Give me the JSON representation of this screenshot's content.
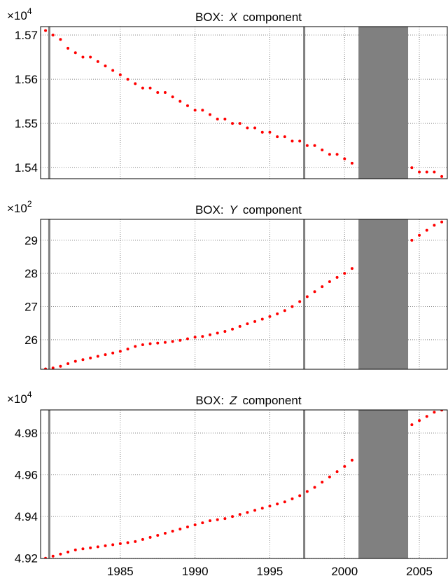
{
  "chart_data": [
    {
      "type": "scatter",
      "title": {
        "prefix": "BOX:",
        "axis": "X",
        "suffix": "component"
      },
      "multiplier": "×10",
      "exponent": "4",
      "color": "#ff0000",
      "grid": true,
      "xtick_labels": false,
      "xlim": [
        1979.67,
        2006.87
      ],
      "xticks": [
        1985,
        1990,
        1995,
        2000,
        2005
      ],
      "ylim": [
        1.5375,
        1.5719
      ],
      "yticks": [
        1.54,
        1.55,
        1.56,
        1.57
      ],
      "vlines": [
        1980.25,
        1997.3
      ],
      "gap": [
        2000.93,
        2004.25
      ],
      "x": [
        1980,
        1980.5,
        1981,
        1981.5,
        1982,
        1982.5,
        1983,
        1983.5,
        1984,
        1984.5,
        1985,
        1985.5,
        1986,
        1986.5,
        1987,
        1987.5,
        1988,
        1988.5,
        1989,
        1989.5,
        1990,
        1990.5,
        1991,
        1991.5,
        1992,
        1992.5,
        1993,
        1993.5,
        1994,
        1994.5,
        1995,
        1995.5,
        1996,
        1996.5,
        1997,
        1997.5,
        1998,
        1998.5,
        1999,
        1999.5,
        2000,
        2000.5,
        2004.5,
        2005,
        2005.5,
        2006,
        2006.5
      ],
      "values": [
        1.571,
        1.57,
        1.569,
        1.567,
        1.566,
        1.565,
        1.565,
        1.564,
        1.563,
        1.562,
        1.561,
        1.56,
        1.559,
        1.558,
        1.558,
        1.557,
        1.557,
        1.556,
        1.555,
        1.554,
        1.553,
        1.553,
        1.552,
        1.551,
        1.551,
        1.55,
        1.55,
        1.549,
        1.549,
        1.548,
        1.548,
        1.547,
        1.547,
        1.546,
        1.546,
        1.545,
        1.545,
        1.544,
        1.543,
        1.543,
        1.542,
        1.541,
        1.54,
        1.539,
        1.539,
        1.539,
        1.538
      ]
    },
    {
      "type": "scatter",
      "title": {
        "prefix": "BOX:",
        "axis": "Y",
        "suffix": "component"
      },
      "multiplier": "×10",
      "exponent": "2",
      "color": "#ff0000",
      "grid": true,
      "xtick_labels": false,
      "xlim": [
        1979.67,
        2006.87
      ],
      "xticks": [
        1985,
        1990,
        1995,
        2000,
        2005
      ],
      "ylim": [
        25.11,
        29.63
      ],
      "yticks": [
        26,
        27,
        28,
        29
      ],
      "vlines": [
        1980.25,
        1997.3
      ],
      "gap": [
        2000.93,
        2004.25
      ],
      "x": [
        1980,
        1980.5,
        1981,
        1981.5,
        1982,
        1982.5,
        1983,
        1983.5,
        1984,
        1984.5,
        1985,
        1985.5,
        1986,
        1986.5,
        1987,
        1987.5,
        1988,
        1988.5,
        1989,
        1989.5,
        1990,
        1990.5,
        1991,
        1991.5,
        1992,
        1992.5,
        1993,
        1993.5,
        1994,
        1994.5,
        1995,
        1995.5,
        1996,
        1996.5,
        1997,
        1997.5,
        1998,
        1998.5,
        1999,
        1999.5,
        2000,
        2000.5,
        2004.5,
        2005,
        2005.5,
        2006,
        2006.5
      ],
      "values": [
        25.12,
        25.15,
        25.2,
        25.28,
        25.35,
        25.4,
        25.45,
        25.5,
        25.55,
        25.6,
        25.65,
        25.72,
        25.8,
        25.85,
        25.88,
        25.9,
        25.92,
        25.95,
        25.98,
        26.03,
        26.08,
        26.1,
        26.15,
        26.2,
        26.25,
        26.32,
        26.4,
        26.48,
        26.55,
        26.62,
        26.7,
        26.78,
        26.88,
        27.0,
        27.15,
        27.3,
        27.45,
        27.6,
        27.75,
        27.88,
        28.0,
        28.15,
        29.0,
        29.15,
        29.3,
        29.45,
        29.55
      ]
    },
    {
      "type": "scatter",
      "title": {
        "prefix": "BOX:",
        "axis": "Z",
        "suffix": "component"
      },
      "multiplier": "×10",
      "exponent": "4",
      "color": "#ff0000",
      "grid": true,
      "xtick_labels": true,
      "xlim": [
        1979.67,
        2006.87
      ],
      "xticks": [
        1985,
        1990,
        1995,
        2000,
        2005
      ],
      "ylim": [
        4.9199,
        4.9911
      ],
      "yticks": [
        4.92,
        4.94,
        4.96,
        4.98
      ],
      "vlines": [
        1980.25,
        1997.3
      ],
      "gap": [
        2000.93,
        2004.25
      ],
      "x": [
        1980,
        1980.5,
        1981,
        1981.5,
        1982,
        1982.5,
        1983,
        1983.5,
        1984,
        1984.5,
        1985,
        1985.5,
        1986,
        1986.5,
        1987,
        1987.5,
        1988,
        1988.5,
        1989,
        1989.5,
        1990,
        1990.5,
        1991,
        1991.5,
        1992,
        1992.5,
        1993,
        1993.5,
        1994,
        1994.5,
        1995,
        1995.5,
        1996,
        1996.5,
        1997,
        1997.5,
        1998,
        1998.5,
        1999,
        1999.5,
        2000,
        2000.5,
        2004.5,
        2005,
        2005.5,
        2006,
        2006.5
      ],
      "values": [
        4.92,
        4.921,
        4.922,
        4.923,
        4.924,
        4.9245,
        4.925,
        4.9255,
        4.926,
        4.9265,
        4.927,
        4.9275,
        4.928,
        4.929,
        4.93,
        4.931,
        4.932,
        4.933,
        4.934,
        4.935,
        4.936,
        4.937,
        4.938,
        4.9385,
        4.939,
        4.94,
        4.941,
        4.942,
        4.943,
        4.944,
        4.945,
        4.946,
        4.947,
        4.9485,
        4.95,
        4.952,
        4.954,
        4.9565,
        4.959,
        4.9615,
        4.964,
        4.967,
        4.984,
        4.986,
        4.988,
        4.99,
        4.991
      ]
    }
  ]
}
